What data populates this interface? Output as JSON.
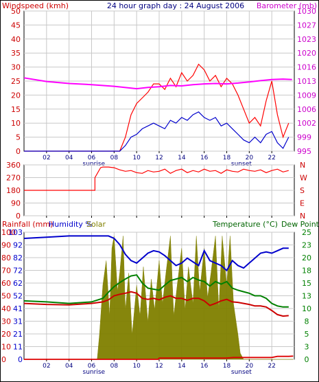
{
  "chart_data": [
    {
      "type": "line",
      "title": "24 hour graph day : 24 August 2006",
      "left_axis_label": "Windspeed (kmh)",
      "right_axis_label": "Barometer (mb)",
      "x_ticks": [
        "02",
        "04",
        "06",
        "08",
        "10",
        "12",
        "14",
        "16",
        "18",
        "20",
        "22"
      ],
      "x_annotations": {
        "sunrise": "sunrise",
        "sunset": "sunset"
      },
      "ylim_left": [
        0,
        50
      ],
      "ylim_right": [
        995,
        1030
      ],
      "left_ticks": [
        0,
        5,
        10,
        15,
        20,
        25,
        30,
        35,
        40,
        45,
        50
      ],
      "right_ticks": [
        995,
        999,
        1002,
        1006,
        1009,
        1013,
        1016,
        1020,
        1023,
        1027,
        1030
      ],
      "grid": true,
      "series": [
        {
          "name": "Windspeed (kmh)",
          "color": "#ff0000",
          "axis": "left",
          "x": [
            0,
            8.5,
            9,
            9.5,
            10,
            10.5,
            11,
            11.5,
            12,
            12.5,
            13,
            13.5,
            14,
            14.5,
            15,
            15.5,
            16,
            16.5,
            17,
            17.5,
            18,
            18.5,
            19,
            19.5,
            20,
            20.5,
            21,
            21.5,
            22,
            22.5,
            23,
            23.5
          ],
          "y": [
            0,
            0,
            5,
            13,
            17,
            19,
            21,
            24,
            24,
            22,
            26,
            23,
            28,
            25,
            27,
            31,
            29,
            25,
            27,
            23,
            26,
            24,
            20,
            15,
            10,
            12,
            9,
            18,
            25,
            13,
            5,
            10
          ]
        },
        {
          "name": "Wind average",
          "color": "#0000cc",
          "axis": "left",
          "x": [
            0,
            8.5,
            9,
            9.5,
            10,
            10.5,
            11,
            11.5,
            12,
            12.5,
            13,
            13.5,
            14,
            14.5,
            15,
            15.5,
            16,
            16.5,
            17,
            17.5,
            18,
            18.5,
            19,
            19.5,
            20,
            20.5,
            21,
            21.5,
            22,
            22.5,
            23,
            23.5
          ],
          "y": [
            0,
            0,
            2,
            5,
            6,
            8,
            9,
            10,
            9,
            8,
            11,
            10,
            12,
            11,
            13,
            14,
            12,
            11,
            12,
            9,
            10,
            8,
            6,
            4,
            3,
            5,
            3,
            6,
            7,
            3,
            1,
            5
          ]
        },
        {
          "name": "Barometer (mb)",
          "color": "#ff00ff",
          "axis": "right",
          "x": [
            0,
            2,
            4,
            6,
            8,
            10,
            11,
            12,
            13,
            14,
            15,
            16,
            17,
            18,
            19,
            20,
            21,
            22,
            23,
            23.8
          ],
          "y": [
            1013.3,
            1012.4,
            1011.9,
            1011.6,
            1011.2,
            1010.6,
            1010.9,
            1011.1,
            1011.4,
            1011.3,
            1011.6,
            1011.8,
            1011.9,
            1011.8,
            1012.0,
            1012.3,
            1012.6,
            1012.9,
            1013.0,
            1012.9
          ]
        }
      ]
    },
    {
      "type": "line",
      "title": "",
      "left_ticks": [
        0,
        90,
        180,
        270,
        360
      ],
      "compass_labels": [
        "N",
        "W",
        "S",
        "E",
        "N"
      ],
      "ylim": [
        0,
        360
      ],
      "series": [
        {
          "name": "Wind direction",
          "color": "#ff0000",
          "x": [
            0,
            6.3,
            6.3,
            6.8,
            7,
            7.5,
            8,
            8.5,
            9,
            9.5,
            10,
            10.5,
            11,
            11.5,
            12,
            12.5,
            13,
            13.5,
            14,
            14.5,
            15,
            15.5,
            16,
            16.5,
            17,
            17.5,
            18,
            18.5,
            19,
            19.5,
            20,
            20.5,
            21,
            21.5,
            22,
            22.5,
            23,
            23.5
          ],
          "y": [
            180,
            180,
            270,
            340,
            345,
            345,
            340,
            325,
            315,
            320,
            305,
            300,
            320,
            310,
            315,
            330,
            300,
            320,
            330,
            305,
            320,
            310,
            330,
            315,
            320,
            300,
            325,
            315,
            310,
            330,
            320,
            315,
            325,
            305,
            320,
            330,
            310,
            320
          ]
        }
      ]
    },
    {
      "type": "area",
      "title": "",
      "legend": [
        "Rainfall (mm)",
        "Humidity %",
        "Solar",
        "Temperature (°C)",
        "Dew Point"
      ],
      "left_ticks": [
        0,
        10,
        20,
        30,
        40,
        50,
        60,
        70,
        80,
        90,
        100
      ],
      "left_tick_labels": [
        "0",
        "11",
        "21",
        "31",
        "41",
        "52",
        "62",
        "72",
        "82",
        "92",
        "103"
      ],
      "right_ticks": [
        0,
        3,
        5,
        8,
        10,
        13,
        15,
        18,
        20,
        23,
        25
      ],
      "ylim_left": [
        0,
        103
      ],
      "ylim_right": [
        0,
        25
      ],
      "series": [
        {
          "name": "Humidity %",
          "color": "#0000cc",
          "axis": "left",
          "x": [
            0,
            2,
            4,
            6,
            7,
            7.5,
            8,
            8.5,
            9,
            9.5,
            10,
            10.5,
            11,
            11.5,
            12,
            12.5,
            13,
            13.5,
            14,
            14.5,
            15,
            15.5,
            16,
            16.5,
            17,
            17.5,
            18,
            18.5,
            19,
            19.5,
            20,
            20.5,
            21,
            21.5,
            22,
            22.5,
            23,
            23.5
          ],
          "y": [
            98,
            99,
            100,
            100,
            100,
            100,
            98,
            93,
            85,
            80,
            78,
            82,
            86,
            88,
            87,
            84,
            80,
            76,
            78,
            82,
            79,
            76,
            88,
            80,
            78,
            76,
            72,
            80,
            76,
            74,
            78,
            82,
            86,
            87,
            86,
            88,
            90,
            90
          ]
        },
        {
          "name": "Temperature (°C)",
          "color": "#008000",
          "axis": "right",
          "x": [
            0,
            2,
            4,
            6,
            7,
            7.5,
            8,
            8.5,
            9,
            9.5,
            10,
            10.5,
            11,
            11.5,
            12,
            12.5,
            13,
            13.5,
            14,
            14.5,
            15,
            15.5,
            16,
            16.5,
            17,
            17.5,
            18,
            18.5,
            19,
            19.5,
            20,
            20.5,
            21,
            21.5,
            22,
            22.5,
            23,
            23.5
          ],
          "y": [
            11.5,
            11.3,
            11.0,
            11.3,
            12.0,
            13.2,
            14.3,
            15.1,
            15.8,
            16.4,
            16.6,
            15.0,
            14.0,
            13.8,
            13.6,
            14.6,
            15.5,
            15.8,
            16.1,
            15.3,
            16.1,
            15.6,
            15.3,
            14.4,
            15.3,
            14.8,
            15.3,
            14.0,
            13.6,
            13.3,
            13.0,
            12.5,
            12.5,
            12.0,
            11.0,
            10.5,
            10.3,
            10.3
          ]
        },
        {
          "name": "Dew Point",
          "color": "#cc0000",
          "axis": "right",
          "x": [
            0,
            2,
            4,
            6,
            7,
            7.5,
            8,
            8.5,
            9,
            9.5,
            10,
            10.5,
            11,
            11.5,
            12,
            12.5,
            13,
            13.5,
            14,
            14.5,
            15,
            15.5,
            16,
            16.5,
            17,
            17.5,
            18,
            18.5,
            19,
            19.5,
            20,
            20.5,
            21,
            21.5,
            22,
            22.5,
            23,
            23.5
          ],
          "y": [
            11.0,
            10.8,
            10.7,
            11.0,
            11.3,
            11.7,
            12.5,
            12.8,
            13.0,
            13.3,
            13.0,
            12.0,
            11.8,
            12.0,
            11.7,
            12.2,
            12.5,
            12.0,
            12.0,
            11.6,
            12.0,
            12.0,
            11.5,
            10.6,
            11.0,
            11.5,
            11.8,
            11.3,
            11.2,
            11.0,
            10.8,
            10.5,
            10.5,
            10.3,
            9.6,
            8.8,
            8.5,
            8.6
          ]
        },
        {
          "name": "Rainfall (mm)",
          "color": "#dd0000",
          "axis": "left",
          "x": [
            0,
            11.9,
            12,
            18,
            18.6,
            19,
            19.5,
            22,
            22.5,
            23,
            23.4,
            23.5,
            23.9
          ],
          "y": [
            0,
            0,
            1,
            1,
            1.5,
            1.5,
            1.5,
            1.5,
            2.4,
            2.4,
            2.4,
            2.4,
            2.6
          ]
        },
        {
          "name": "Solar",
          "color": "#808000",
          "axis": "left",
          "x": [
            0,
            6.5,
            6.7,
            7,
            7.3,
            7.6,
            7.8,
            8,
            8.3,
            8.5,
            8.8,
            9,
            9.3,
            9.6,
            10,
            10.3,
            10.6,
            11,
            11.3,
            11.6,
            12,
            12.3,
            12.6,
            13,
            13.3,
            13.6,
            14,
            14.3,
            14.6,
            15,
            15.3,
            15.6,
            16,
            16.3,
            16.6,
            17,
            17.3,
            17.6,
            18,
            18.3,
            18.6,
            19,
            19.2,
            19.5,
            23.9
          ],
          "y": [
            0,
            0,
            20,
            60,
            80,
            35,
            90,
            100,
            55,
            70,
            100,
            40,
            70,
            20,
            60,
            35,
            75,
            30,
            65,
            40,
            80,
            45,
            70,
            100,
            35,
            60,
            90,
            40,
            75,
            45,
            100,
            55,
            90,
            50,
            70,
            100,
            40,
            100,
            60,
            100,
            45,
            20,
            5,
            0,
            0
          ]
        }
      ]
    }
  ]
}
